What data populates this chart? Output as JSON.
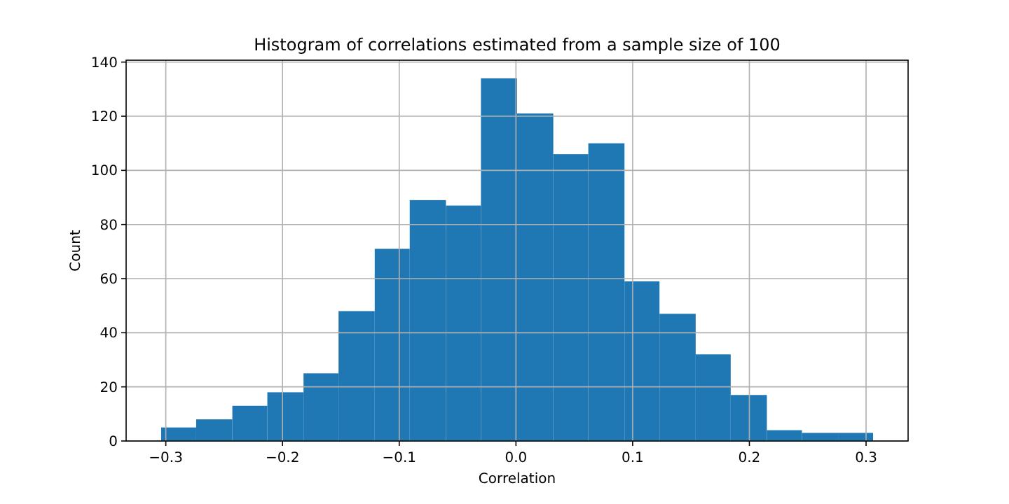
{
  "chart_data": {
    "type": "histogram",
    "title": "Histogram of correlations estimated from a sample size of 100",
    "xlabel": "Correlation",
    "ylabel": "Count",
    "bins": [
      -0.304,
      -0.274,
      -0.243,
      -0.213,
      -0.182,
      -0.152,
      -0.121,
      -0.091,
      -0.06,
      -0.03,
      0.001,
      0.032,
      0.062,
      0.093,
      0.123,
      0.154,
      0.184,
      0.215,
      0.245,
      0.276,
      0.306
    ],
    "values": [
      5,
      8,
      13,
      18,
      25,
      48,
      71,
      89,
      87,
      134,
      121,
      106,
      110,
      59,
      47,
      32,
      17,
      4,
      3,
      3
    ],
    "color": "#1f77b4",
    "xlim": [
      -0.334,
      0.336
    ],
    "xticks": [
      {
        "value": -0.3,
        "label": "−0.3"
      },
      {
        "value": -0.2,
        "label": "−0.2"
      },
      {
        "value": -0.1,
        "label": "−0.1"
      },
      {
        "value": 0,
        "label": "0.0"
      },
      0.1,
      0.2,
      0.3
    ],
    "ylim": [
      0,
      140.7
    ],
    "yticks": [
      0,
      20,
      40,
      60,
      80,
      100,
      120,
      140
    ],
    "grid": true
  }
}
